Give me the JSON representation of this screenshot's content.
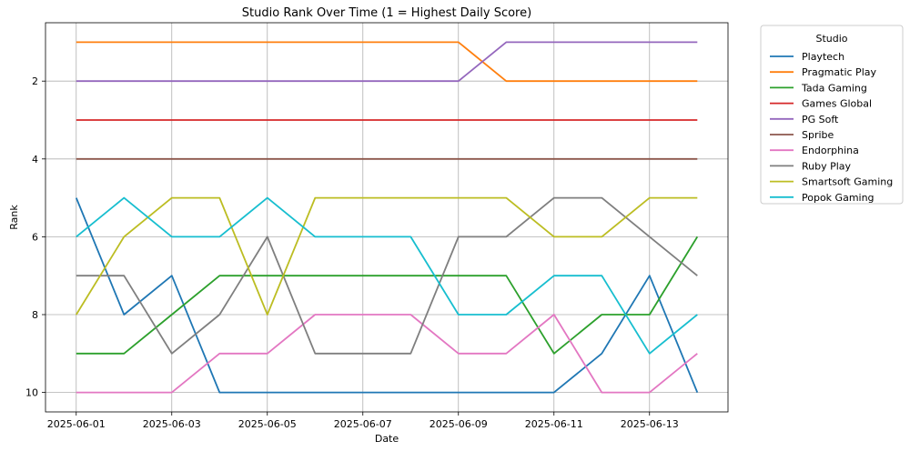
{
  "chart_data": {
    "type": "line",
    "title": "Studio Rank Over Time (1 = Highest Daily Score)",
    "xlabel": "Date",
    "ylabel": "Rank",
    "y_inverted": true,
    "ylim": [
      10.5,
      0.5
    ],
    "yticks": [
      2,
      4,
      6,
      8,
      10
    ],
    "x": [
      "2025-06-01",
      "2025-06-02",
      "2025-06-03",
      "2025-06-04",
      "2025-06-05",
      "2025-06-06",
      "2025-06-07",
      "2025-06-08",
      "2025-06-09",
      "2025-06-10",
      "2025-06-11",
      "2025-06-12",
      "2025-06-13",
      "2025-06-14"
    ],
    "xticks": [
      "2025-06-01",
      "2025-06-03",
      "2025-06-05",
      "2025-06-07",
      "2025-06-09",
      "2025-06-11",
      "2025-06-13"
    ],
    "grid": true,
    "legend": {
      "title": "Studio",
      "placement": "outside-top-right"
    },
    "series": [
      {
        "name": "Playtech",
        "color": "#1f77b4",
        "values": [
          5,
          8,
          7,
          10,
          10,
          10,
          10,
          10,
          10,
          10,
          10,
          9,
          7,
          10
        ]
      },
      {
        "name": "Pragmatic Play",
        "color": "#ff7f0e",
        "values": [
          1,
          1,
          1,
          1,
          1,
          1,
          1,
          1,
          1,
          2,
          2,
          2,
          2,
          2
        ]
      },
      {
        "name": "Tada Gaming",
        "color": "#2ca02c",
        "values": [
          9,
          9,
          8,
          7,
          7,
          7,
          7,
          7,
          7,
          7,
          9,
          8,
          8,
          6
        ]
      },
      {
        "name": "Games Global",
        "color": "#d62728",
        "values": [
          3,
          3,
          3,
          3,
          3,
          3,
          3,
          3,
          3,
          3,
          3,
          3,
          3,
          3
        ]
      },
      {
        "name": "PG Soft",
        "color": "#9467bd",
        "values": [
          2,
          2,
          2,
          2,
          2,
          2,
          2,
          2,
          2,
          1,
          1,
          1,
          1,
          1
        ]
      },
      {
        "name": "Spribe",
        "color": "#8c564b",
        "values": [
          4,
          4,
          4,
          4,
          4,
          4,
          4,
          4,
          4,
          4,
          4,
          4,
          4,
          4
        ]
      },
      {
        "name": "Endorphina",
        "color": "#e377c2",
        "values": [
          10,
          10,
          10,
          9,
          9,
          8,
          8,
          8,
          9,
          9,
          8,
          10,
          10,
          9
        ]
      },
      {
        "name": "Ruby Play",
        "color": "#7f7f7f",
        "values": [
          7,
          7,
          9,
          8,
          6,
          9,
          9,
          9,
          6,
          6,
          5,
          5,
          6,
          7
        ]
      },
      {
        "name": "Smartsoft Gaming",
        "color": "#bcbd22",
        "values": [
          8,
          6,
          5,
          5,
          8,
          5,
          5,
          5,
          5,
          5,
          6,
          6,
          5,
          5
        ]
      },
      {
        "name": "Popok Gaming",
        "color": "#17becf",
        "values": [
          6,
          5,
          6,
          6,
          5,
          6,
          6,
          6,
          8,
          8,
          7,
          7,
          9,
          8
        ]
      }
    ]
  }
}
